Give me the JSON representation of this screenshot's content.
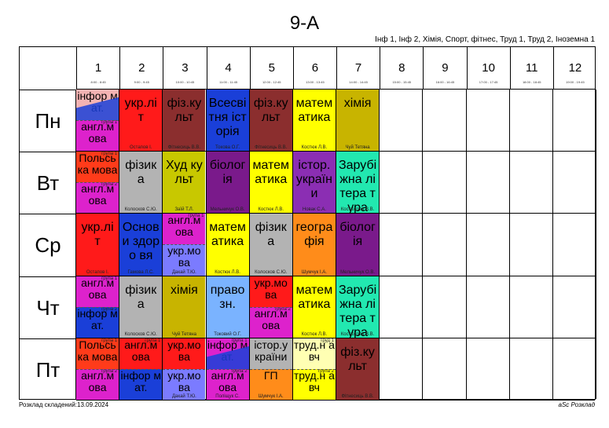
{
  "title": "9-А",
  "subjects_list": "Інф 1, Інф 2, Хімія, Спорт, фітнес, Труд 1, Труд 2, Іноземна 1",
  "footer_left": "Розклад складений:13.09.2024",
  "footer_right": "aSc Розклад",
  "periods": [
    {
      "num": "1",
      "time": "8:00 - 8:45"
    },
    {
      "num": "2",
      "time": "9:00 - 9:45"
    },
    {
      "num": "3",
      "time": "10:00 - 10:45"
    },
    {
      "num": "4",
      "time": "11:00 - 11:45"
    },
    {
      "num": "5",
      "time": "12:00 - 12:45"
    },
    {
      "num": "6",
      "time": "13:00 - 13:45"
    },
    {
      "num": "7",
      "time": "14:00 - 14:45"
    },
    {
      "num": "8",
      "time": "15:00 - 15:45"
    },
    {
      "num": "9",
      "time": "16:00 - 16:45"
    },
    {
      "num": "10",
      "time": "17:00 - 17:45"
    },
    {
      "num": "11",
      "time": "18:00 - 18:45"
    },
    {
      "num": "12",
      "time": "19:00 - 19:45"
    }
  ],
  "days": [
    {
      "label": "Пн",
      "lessons": [
        {
          "period": 1,
          "split": true,
          "parts": [
            {
              "subject": "інфор мат.",
              "color": "#f4b3b3",
              "teacher": "",
              "group": ""
            },
            {
              "subject": "англ.м ова",
              "color": "#dd22cc",
              "teacher": "",
              "group": "група 1"
            }
          ],
          "diagonal_color": "#1a3fd8"
        },
        {
          "period": 2,
          "subject": "укр.лі т",
          "color": "#ff1a1a",
          "teacher": "Остапов І."
        },
        {
          "period": 3,
          "subject": "фіз.ку льт",
          "color": "#8b2e2e",
          "teacher": "Фітнесиць В.В."
        },
        {
          "period": 4,
          "subject": "Всесві тня історія",
          "color": "#1a3fd8",
          "teacher": "Токова О.Г."
        },
        {
          "period": 5,
          "subject": "фіз.ку льт",
          "color": "#8b2e2e",
          "teacher": "Фітнесиць В.В."
        },
        {
          "period": 6,
          "subject": "матем атика",
          "color": "#ffff00",
          "teacher": "Костюк Л.В."
        },
        {
          "period": 7,
          "subject": "хімія",
          "color": "#c8b400",
          "teacher": "Чуй Тетяна"
        }
      ]
    },
    {
      "label": "Вт",
      "lessons": [
        {
          "period": 1,
          "split": true,
          "parts": [
            {
              "subject": "Польсь ка мова",
              "color": "#ff3b1a",
              "teacher": "",
              "group": "група 1"
            },
            {
              "subject": "англ.м ова",
              "color": "#dd22cc",
              "teacher": "",
              "group": "група 2"
            }
          ]
        },
        {
          "period": 2,
          "subject": "фізик а",
          "color": "#b3b3b3",
          "teacher": "Колосков С.Ю."
        },
        {
          "period": 3,
          "subject": "Худ культ",
          "color": "#c8c800",
          "teacher": "Заїй Т.Л."
        },
        {
          "period": 4,
          "subject": "біолог ія",
          "color": "#7a1a8b",
          "teacher": "Мельничук О.В."
        },
        {
          "period": 5,
          "subject": "матем атика",
          "color": "#ffff00",
          "teacher": "Костюк Л.В."
        },
        {
          "period": 6,
          "subject": "істор. україн и",
          "color": "#8b2eb3",
          "teacher": "Новак С.А."
        },
        {
          "period": 7,
          "subject": "Зарубі жна літера тура",
          "color": "#22e8b0",
          "teacher": "Костюкова В.В."
        }
      ]
    },
    {
      "label": "Ср",
      "lessons": [
        {
          "period": 1,
          "subject": "укр.лі т",
          "color": "#ff1a1a",
          "teacher": "Остапов І."
        },
        {
          "period": 2,
          "subject": "Основ и здоро вя",
          "color": "#1a3fd8",
          "teacher": "Гамова Л.С."
        },
        {
          "period": 3,
          "split": true,
          "parts": [
            {
              "subject": "англ.м ова",
              "color": "#dd22cc",
              "teacher": "",
              "group": "група 1"
            },
            {
              "subject": "укр.мо ва",
              "color": "#7b7bff",
              "teacher": "Дакай Т.Ю.",
              "group": ""
            }
          ]
        },
        {
          "period": 4,
          "subject": "матем атика",
          "color": "#ffff00",
          "teacher": "Костюк Л.В."
        },
        {
          "period": 5,
          "subject": "фізик а",
          "color": "#b3b3b3",
          "teacher": "Колосков С.Ю."
        },
        {
          "period": 6,
          "subject": "геогра фія",
          "color": "#ff8c1a",
          "teacher": "Шумчук І.А."
        },
        {
          "period": 7,
          "subject": "біолог ія",
          "color": "#7a1a8b",
          "teacher": "Мельничук О.В."
        }
      ]
    },
    {
      "label": "Чт",
      "lessons": [
        {
          "period": 1,
          "split": true,
          "parts": [
            {
              "subject": "англ.м ова",
              "color": "#dd22cc",
              "teacher": "",
              "group": "група 1"
            },
            {
              "subject": "інфор мат.",
              "color": "#1a3fd8",
              "teacher": "",
              "group": "група 2"
            }
          ]
        },
        {
          "period": 2,
          "subject": "фізик а",
          "color": "#b3b3b3",
          "teacher": "Колосков С.Ю."
        },
        {
          "period": 3,
          "subject": "хімія",
          "color": "#c8b400",
          "teacher": "Чуй Тетяна"
        },
        {
          "period": 4,
          "subject": "право зн.",
          "color": "#7ab3ff",
          "teacher": "Токовий О.Г."
        },
        {
          "period": 5,
          "split": true,
          "parts": [
            {
              "subject": "укр.мо ва",
              "color": "#ff1a1a",
              "teacher": "",
              "group": ""
            },
            {
              "subject": "англ.м ова",
              "color": "#dd22cc",
              "teacher": "",
              "group": "група 2"
            }
          ]
        },
        {
          "period": 6,
          "subject": "матем атика",
          "color": "#ffff00",
          "teacher": "Костюк Л.В."
        },
        {
          "period": 7,
          "subject": "Зарубі жна літера тура",
          "color": "#22e8b0",
          "teacher": "Костюкова В.В."
        }
      ]
    },
    {
      "label": "Пт",
      "lessons": [
        {
          "period": 1,
          "split": true,
          "parts": [
            {
              "subject": "Польсь ка мова",
              "color": "#ff3b1a",
              "teacher": "",
              "group": "група 1"
            },
            {
              "subject": "англ.м ова",
              "color": "#dd22cc",
              "teacher": "",
              "group": "група 2"
            }
          ]
        },
        {
          "period": 2,
          "split": true,
          "parts": [
            {
              "subject": "англ.м ова",
              "color": "#ff1a1a",
              "teacher": "",
              "group": "група 1"
            },
            {
              "subject": "інфор мат.",
              "color": "#1a3fd8",
              "teacher": "",
              "group": ""
            }
          ]
        },
        {
          "period": 3,
          "split": true,
          "parts": [
            {
              "subject": "укр.мо ва",
              "color": "#ff1a1a",
              "teacher": "",
              "group": ""
            },
            {
              "subject": "укр.мо ва",
              "color": "#7b7bff",
              "teacher": "Дакай Т.Ю.",
              "group": ""
            }
          ]
        },
        {
          "period": 4,
          "split": true,
          "parts": [
            {
              "subject": "інфор мат.",
              "color": "#dd22cc",
              "teacher": "",
              "group": "група 1"
            },
            {
              "subject": "англ.м ова",
              "color": "#dd22cc",
              "teacher": "Поліщук С.",
              "group": "група 2"
            }
          ],
          "diagonal_color": "#1a3fd8"
        },
        {
          "period": 5,
          "split": true,
          "parts": [
            {
              "subject": "істор.у країни",
              "color": "#b3b3b3",
              "teacher": "",
              "group": ""
            },
            {
              "subject": "ГП",
              "color": "#ff8c1a",
              "teacher": "Шумчук І.А.",
              "group": ""
            }
          ]
        },
        {
          "period": 6,
          "split": true,
          "parts": [
            {
              "subject": "труд.н авч",
              "color": "#ffffb3",
              "teacher": "",
              "group": "Труд 1"
            },
            {
              "subject": "труд.н авч",
              "color": "#ffff00",
              "teacher": "",
              "group": "група 2"
            }
          ]
        },
        {
          "period": 7,
          "subject": "фіз.ку льт",
          "color": "#8b2e2e",
          "teacher": "Фітнесиць В.В."
        }
      ]
    }
  ]
}
